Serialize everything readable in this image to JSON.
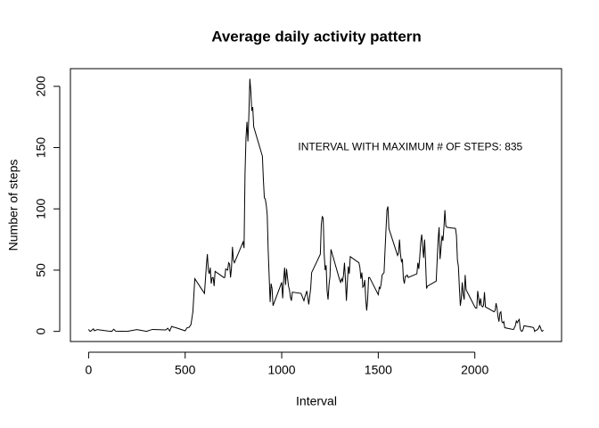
{
  "chart_data": {
    "type": "line",
    "title": "Average daily activity pattern",
    "x_label": "Interval",
    "y_label": "Number of steps",
    "annotation": "INTERVAL WITH MAXIMUM # OF STEPS: 835",
    "annotation_color": "#ff0000",
    "annotation_x": 1666,
    "annotation_y": 150,
    "x": [
      0,
      5,
      10,
      25,
      30,
      45,
      100,
      110,
      120,
      130,
      140,
      200,
      250,
      300,
      330,
      400,
      410,
      420,
      430,
      440,
      450,
      500,
      510,
      520,
      530,
      540,
      550,
      600,
      610,
      615,
      620,
      625,
      630,
      635,
      640,
      645,
      650,
      655,
      700,
      705,
      710,
      720,
      725,
      730,
      735,
      740,
      745,
      750,
      755,
      800,
      805,
      810,
      815,
      820,
      825,
      830,
      835,
      840,
      845,
      850,
      855,
      900,
      905,
      910,
      915,
      920,
      925,
      930,
      935,
      940,
      945,
      950,
      955,
      1000,
      1005,
      1010,
      1015,
      1020,
      1025,
      1030,
      1035,
      1040,
      1045,
      1050,
      1055,
      1100,
      1115,
      1120,
      1130,
      1140,
      1150,
      1155,
      1200,
      1205,
      1210,
      1215,
      1220,
      1225,
      1230,
      1235,
      1240,
      1245,
      1250,
      1255,
      1300,
      1305,
      1310,
      1315,
      1320,
      1325,
      1330,
      1335,
      1340,
      1345,
      1350,
      1355,
      1400,
      1405,
      1410,
      1415,
      1420,
      1425,
      1430,
      1435,
      1440,
      1445,
      1450,
      1455,
      1500,
      1505,
      1510,
      1515,
      1520,
      1525,
      1530,
      1535,
      1540,
      1545,
      1550,
      1555,
      1600,
      1605,
      1610,
      1615,
      1620,
      1625,
      1630,
      1635,
      1640,
      1645,
      1650,
      1655,
      1700,
      1705,
      1710,
      1715,
      1720,
      1725,
      1730,
      1735,
      1740,
      1745,
      1750,
      1755,
      1800,
      1805,
      1810,
      1815,
      1820,
      1825,
      1830,
      1835,
      1840,
      1845,
      1850,
      1855,
      1900,
      1905,
      1910,
      1915,
      1920,
      1925,
      1930,
      1935,
      1940,
      1945,
      1950,
      1955,
      2000,
      2005,
      2010,
      2015,
      2020,
      2025,
      2030,
      2035,
      2040,
      2045,
      2050,
      2055,
      2100,
      2105,
      2110,
      2115,
      2120,
      2125,
      2130,
      2135,
      2140,
      2145,
      2150,
      2155,
      2200,
      2205,
      2210,
      2215,
      2220,
      2225,
      2230,
      2235,
      2240,
      2245,
      2250,
      2255,
      2300,
      2305,
      2310,
      2315,
      2320,
      2325,
      2330,
      2335,
      2340,
      2345,
      2350,
      2355
    ],
    "series": [
      {
        "name": "steps",
        "color": "#000000",
        "values": [
          1.7,
          0.3,
          0.1,
          2.1,
          0.5,
          1.5,
          0.3,
          0.2,
          0,
          1.8,
          0.2,
          0,
          1.5,
          0,
          1.6,
          1.2,
          2.6,
          0.3,
          4.1,
          3.5,
          3.1,
          0.5,
          3,
          3.3,
          5.5,
          16,
          43,
          31,
          54,
          63,
          50,
          47,
          52,
          39,
          44,
          44,
          37,
          49,
          44,
          44,
          51,
          50,
          56,
          55,
          44,
          52,
          69,
          58,
          56,
          73,
          68,
          129,
          158,
          171,
          155,
          177,
          206.17,
          196,
          180,
          183,
          167,
          143,
          124,
          109,
          108,
          103,
          95,
          66,
          45,
          24,
          39,
          35,
          21,
          40,
          27,
          42,
          52,
          38,
          51,
          44,
          37,
          34,
          28,
          25,
          32,
          31,
          25,
          28,
          33,
          22,
          35,
          48,
          63,
          87,
          94,
          92,
          63,
          50,
          54,
          33,
          26,
          38,
          45,
          67,
          42,
          40,
          43,
          41,
          46,
          56,
          42,
          25,
          40,
          53,
          47,
          61,
          56,
          52,
          43,
          48,
          36,
          37,
          42,
          27,
          17,
          26,
          44,
          44,
          30,
          36,
          35,
          39,
          46,
          47,
          48,
          66,
          83,
          99,
          102,
          84,
          62,
          64,
          75,
          63,
          57,
          59,
          43,
          39,
          45,
          45,
          46,
          44,
          47,
          56,
          51,
          61,
          73,
          79,
          69,
          60,
          75,
          57,
          35,
          37,
          41,
          58,
          75,
          85,
          59,
          68,
          78,
          74,
          85,
          99,
          86,
          85,
          84,
          78,
          58,
          53,
          36,
          21,
          27,
          40,
          30,
          26,
          46,
          34,
          20,
          19,
          19,
          33,
          27,
          21,
          27,
          21,
          20,
          21,
          32,
          20,
          16,
          17,
          23,
          19,
          12,
          8,
          15,
          16,
          8,
          7,
          8,
          3,
          1.5,
          3,
          4.8,
          8.5,
          7.1,
          8.7,
          9.8,
          2.2,
          0.3,
          0.1,
          1.6,
          4.6,
          3.3,
          2.8,
          0,
          0.8,
          1,
          1.6,
          2.6,
          4.7,
          3.3,
          0.6,
          0.2,
          1.1
        ]
      }
    ],
    "xlim": [
      -94.2,
      2449.2
    ],
    "ylim": [
      -8.25,
      214.42
    ],
    "xticks": [
      0,
      500,
      1000,
      1500,
      2000
    ],
    "yticks": [
      0,
      50,
      100,
      150,
      200
    ]
  }
}
